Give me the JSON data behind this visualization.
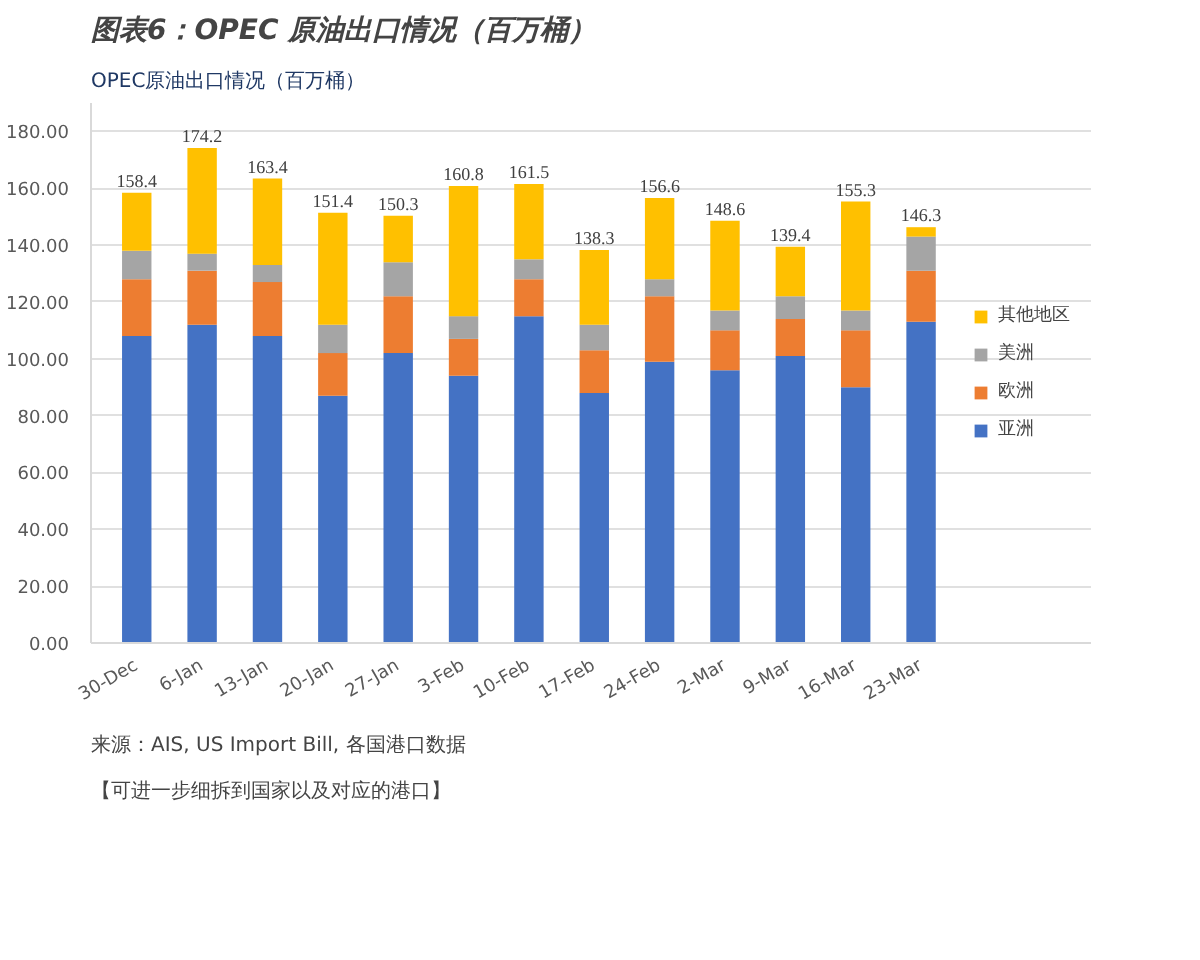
{
  "chart_data": {
    "type": "bar",
    "stacked": true,
    "title": "图表6：OPEC 原油出口情况（百万桶）",
    "subtitle": "OPEC原油出口情况（百万桶）",
    "categories": [
      "30-Dec",
      "6-Jan",
      "13-Jan",
      "20-Jan",
      "27-Jan",
      "3-Feb",
      "10-Feb",
      "17-Feb",
      "24-Feb",
      "2-Mar",
      "9-Mar",
      "16-Mar",
      "23-Mar"
    ],
    "series": [
      {
        "name": "亚洲",
        "color": "#4472c4",
        "values": [
          108,
          112,
          108,
          87,
          102,
          94,
          115,
          88,
          99,
          96,
          101,
          90,
          113
        ]
      },
      {
        "name": "欧洲",
        "color": "#ed7d31",
        "values": [
          20,
          19,
          19,
          15,
          20,
          13,
          13,
          15,
          23,
          14,
          13,
          20,
          18
        ]
      },
      {
        "name": "美洲",
        "color": "#a5a5a5",
        "values": [
          10,
          6,
          6,
          10,
          12,
          8,
          7,
          9,
          6,
          7,
          8,
          7,
          12
        ]
      },
      {
        "name": "其他地区",
        "color": "#ffc000",
        "values": [
          20.4,
          37.2,
          30.4,
          39.4,
          16.3,
          45.8,
          26.5,
          26.3,
          28.6,
          31.6,
          17.4,
          38.3,
          3.3
        ]
      }
    ],
    "totals": [
      "158.4",
      "174.2",
      "163.4",
      "151.4",
      "150.3",
      "160.8",
      "161.5",
      "138.3",
      "156.6",
      "148.6",
      "139.4",
      "155.3",
      "146.3"
    ],
    "ylim": [
      0,
      190
    ],
    "yticks": [
      {
        "value": 0,
        "label": "0.00"
      },
      {
        "value": 20,
        "label": "20.00"
      },
      {
        "value": 40,
        "label": "40.00"
      },
      {
        "value": 60,
        "label": "60.00"
      },
      {
        "value": 80,
        "label": "80.00"
      },
      {
        "value": 100,
        "label": "100.00"
      },
      {
        "value": 120,
        "label": "120.00"
      },
      {
        "value": 140,
        "label": "140.00"
      },
      {
        "value": 160,
        "label": "160.00"
      },
      {
        "value": 180,
        "label": "180.00"
      }
    ],
    "grid": "y",
    "legend": "right",
    "annotations": [
      "【可进一步细拆到国家以及对应的港口】",
      "来源：AIS, US Import Bill, 各国港口数据"
    ]
  }
}
